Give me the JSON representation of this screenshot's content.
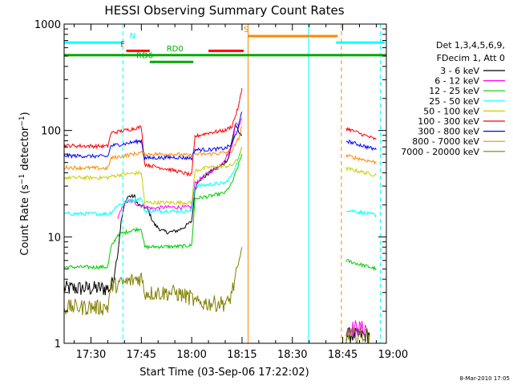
{
  "chart_data": {
    "type": "line",
    "title": "HESSI Observing Summary Count Rates",
    "xlabel": "Start Time (03-Sep-06 17:22:02)",
    "ylabel_main": "Count Rate (s",
    "ylabel_sup1": "−1",
    "ylabel_mid": " detector",
    "ylabel_sup2": "−1",
    "ylabel_end": ")",
    "y_scale": "log",
    "ylim": [
      1,
      1000
    ],
    "xlim_min": [
      22,
      118
    ],
    "x_ticks": [
      {
        "label": "17:30",
        "min": 30
      },
      {
        "label": "17:45",
        "min": 45
      },
      {
        "label": "18:00",
        "min": 60
      },
      {
        "label": "18:15",
        "min": 75
      },
      {
        "label": "18:30",
        "min": 90
      },
      {
        "label": "18:45",
        "min": 105
      },
      {
        "label": "19:00",
        "min": 120
      }
    ],
    "y_ticks": [
      {
        "label": "1",
        "value": 1
      },
      {
        "label": "10",
        "value": 10
      },
      {
        "label": "100",
        "value": 100
      },
      {
        "label": "1000",
        "value": 1000
      }
    ],
    "legend": {
      "placement": "right",
      "header1": "Det 1,3,4,5,6,9,",
      "header2": "FDecim 1, Att 0"
    },
    "series": [
      {
        "name": "3 - 6 keV",
        "color": "#000000",
        "segments": [
          [
            [
              22,
              3.3
            ],
            [
              36,
              3.3
            ],
            [
              38,
              7
            ],
            [
              39,
              14
            ],
            [
              40,
              20
            ],
            [
              41,
              24
            ],
            [
              43,
              24
            ],
            [
              44,
              20
            ],
            [
              46,
              19
            ],
            [
              47,
              18
            ],
            [
              48,
              15
            ],
            [
              49,
              13
            ],
            [
              51,
              11.5
            ],
            [
              53,
              11
            ],
            [
              56,
              11.5
            ],
            [
              58,
              12.5
            ],
            [
              60,
              14
            ],
            [
              61,
              28
            ],
            [
              62,
              34
            ],
            [
              64,
              37
            ],
            [
              66,
              42
            ],
            [
              67,
              44
            ],
            [
              69,
              47
            ],
            [
              71,
              55
            ],
            [
              72,
              80
            ],
            [
              73,
              115
            ],
            [
              74,
              95
            ],
            [
              75,
              90
            ]
          ],
          [
            [
              106,
              1.2
            ],
            [
              113,
              1.2
            ]
          ]
        ]
      },
      {
        "name": "6 - 12 keV",
        "color": "#ff00ff",
        "segments": [
          [
            [
              38,
              15
            ],
            [
              40,
              21
            ],
            [
              42,
              22
            ],
            [
              44,
              20
            ],
            [
              46,
              19.5
            ],
            [
              48,
              18.5
            ],
            [
              52,
              19
            ],
            [
              58,
              19
            ],
            [
              60,
              19
            ],
            [
              61,
              32
            ],
            [
              63,
              36
            ],
            [
              65,
              40
            ],
            [
              68,
              45
            ],
            [
              70,
              55
            ],
            [
              72,
              70
            ],
            [
              73,
              118
            ],
            [
              74,
              110
            ],
            [
              75,
              130
            ]
          ],
          [
            [
              106,
              1.4
            ],
            [
              112,
              1.4
            ]
          ]
        ]
      },
      {
        "name": "12 - 25 keV",
        "color": "#00cc00",
        "segments": [
          [
            [
              22,
              5.2
            ],
            [
              35,
              5.2
            ],
            [
              36,
              8
            ],
            [
              38,
              10.5
            ],
            [
              42,
              11.5
            ],
            [
              45,
              12
            ],
            [
              46,
              8
            ],
            [
              50,
              8.1
            ],
            [
              55,
              8.1
            ],
            [
              60,
              8.3
            ],
            [
              61,
              23
            ],
            [
              65,
              24
            ],
            [
              70,
              26
            ],
            [
              72,
              32
            ],
            [
              74,
              48
            ],
            [
              75,
              60
            ]
          ],
          [
            [
              106,
              6
            ],
            [
              115,
              5
            ]
          ]
        ]
      },
      {
        "name": "25 - 50 keV",
        "color": "#00ffff",
        "segments": [
          [
            [
              22,
              16.5
            ],
            [
              35,
              16.5
            ],
            [
              36,
              17
            ],
            [
              38,
              20
            ],
            [
              42,
              22
            ],
            [
              45,
              23
            ],
            [
              46,
              17.5
            ],
            [
              55,
              17.5
            ],
            [
              60,
              17.5
            ],
            [
              61,
              30
            ],
            [
              65,
              31
            ],
            [
              70,
              32
            ],
            [
              72,
              38
            ],
            [
              74,
              55
            ],
            [
              75,
              70
            ]
          ],
          [
            [
              106,
              18
            ],
            [
              115,
              16
            ]
          ]
        ]
      },
      {
        "name": "50 - 100 keV",
        "color": "#cccc00",
        "segments": [
          [
            [
              22,
              36
            ],
            [
              35,
              36
            ],
            [
              36,
              37
            ],
            [
              40,
              39
            ],
            [
              45,
              40
            ],
            [
              46,
              21
            ],
            [
              55,
              21
            ],
            [
              60,
              21
            ],
            [
              61,
              42
            ],
            [
              65,
              45
            ],
            [
              70,
              46
            ],
            [
              72,
              47
            ],
            [
              74,
              55
            ],
            [
              75,
              70
            ]
          ],
          [
            [
              106,
              44
            ],
            [
              115,
              38
            ]
          ]
        ]
      },
      {
        "name": "100 - 300 keV",
        "color": "#ff0000",
        "segments": [
          [
            [
              22,
              72
            ],
            [
              35,
              71
            ],
            [
              36,
              95
            ],
            [
              40,
              100
            ],
            [
              45,
              108
            ],
            [
              46,
              48
            ],
            [
              55,
              42
            ],
            [
              60,
              38
            ],
            [
              61,
              88
            ],
            [
              65,
              95
            ],
            [
              70,
              100
            ],
            [
              72,
              110
            ],
            [
              74,
              170
            ],
            [
              75,
              250
            ]
          ],
          [
            [
              106,
              105
            ],
            [
              115,
              82
            ]
          ]
        ]
      },
      {
        "name": "300 - 800 keV",
        "color": "#0000ff",
        "segments": [
          [
            [
              22,
              58
            ],
            [
              35,
              57
            ],
            [
              36,
              72
            ],
            [
              40,
              75
            ],
            [
              45,
              80
            ],
            [
              46,
              55
            ],
            [
              55,
              56
            ],
            [
              60,
              55
            ],
            [
              61,
              66
            ],
            [
              65,
              66
            ],
            [
              70,
              68
            ],
            [
              72,
              74
            ],
            [
              74,
              110
            ],
            [
              75,
              150
            ]
          ],
          [
            [
              106,
              80
            ],
            [
              115,
              66
            ]
          ]
        ]
      },
      {
        "name": "800 - 7000 keV",
        "color": "#ff8800",
        "segments": [
          [
            [
              22,
              45
            ],
            [
              35,
              44
            ],
            [
              36,
              55
            ],
            [
              40,
              58
            ],
            [
              45,
              62
            ],
            [
              46,
              60
            ],
            [
              55,
              60
            ],
            [
              60,
              58
            ],
            [
              61,
              60
            ],
            [
              65,
              60
            ],
            [
              70,
              62
            ],
            [
              72,
              64
            ],
            [
              74,
              85
            ],
            [
              75,
              110
            ]
          ],
          [
            [
              106,
              58
            ],
            [
              115,
              50
            ]
          ]
        ]
      },
      {
        "name": "7000 - 20000 keV",
        "color": "#808000",
        "segments": [
          [
            [
              22,
              2.2
            ],
            [
              35,
              2.2
            ],
            [
              36,
              3.5
            ],
            [
              38,
              3.6
            ],
            [
              40,
              3.7
            ],
            [
              45,
              4.2
            ],
            [
              46,
              3.0
            ],
            [
              55,
              3.0
            ],
            [
              60,
              2.7
            ],
            [
              61,
              2.4
            ],
            [
              65,
              2.4
            ],
            [
              71,
              2.4
            ],
            [
              73,
              4
            ],
            [
              75,
              8
            ]
          ],
          [
            [
              106,
              1.2
            ],
            [
              113,
              1.2
            ]
          ]
        ]
      }
    ],
    "vertical_lines": [
      {
        "min": 22.0,
        "color": "#00ffff",
        "style": "solid"
      },
      {
        "min": 39.5,
        "color": "#00ffff",
        "style": "dashed"
      },
      {
        "min": 76.8,
        "color": "#ff8800",
        "style": "solid"
      },
      {
        "min": 94.8,
        "color": "#00ffff",
        "style": "solid"
      },
      {
        "min": 104.6,
        "color": "#ff8800",
        "style": "dashed"
      },
      {
        "min": 116.2,
        "color": "#00ffff",
        "style": "dashed"
      }
    ],
    "flag_bars": [
      {
        "label": "N",
        "color": "#00ffff",
        "y_value": 670,
        "segments": [
          [
            22,
            39.5
          ],
          [
            103,
            117.5
          ]
        ],
        "label_min": 41.5
      },
      {
        "label": "S",
        "color": "#ff8800",
        "y_value": 770,
        "segments": [
          [
            76.8,
            103.5
          ]
        ],
        "label_min": 75.5
      },
      {
        "label": "F",
        "color": "#ff0000",
        "y_value": 560,
        "segments": [
          [
            40.5,
            47.5
          ],
          [
            65,
            75.5
          ]
        ],
        "label_min": 38.8
      },
      {
        "label": "RD0",
        "color": "#00aa00",
        "y_value": 510,
        "segments": [
          [
            22,
            118
          ]
        ],
        "label_min": 52.5
      },
      {
        "label": "RD6",
        "color": "#00aa00",
        "y_value": 440,
        "segments": [
          [
            47.5,
            60.5
          ]
        ],
        "label_min": 43.5
      }
    ]
  },
  "footer_timestamp": "8-Mar-2010 17:05"
}
